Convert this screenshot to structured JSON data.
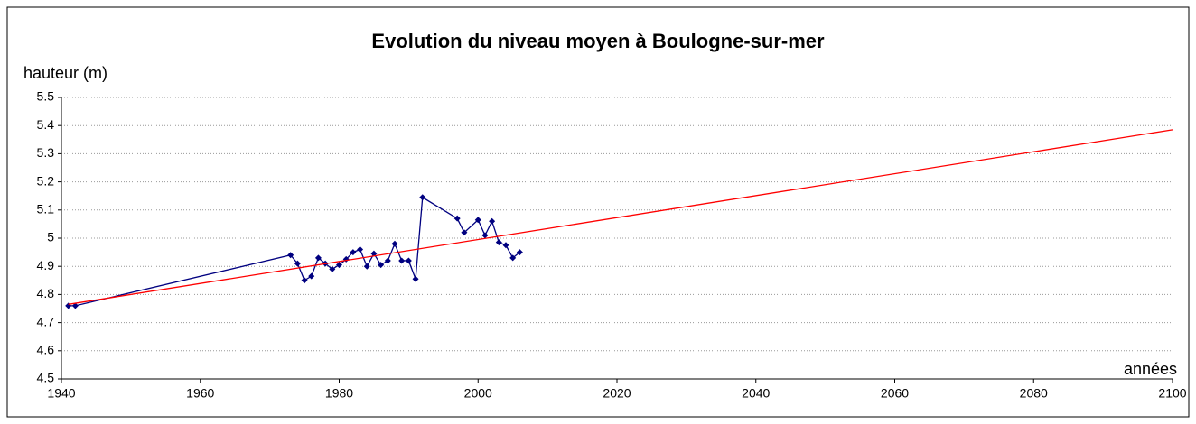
{
  "chart_data": {
    "type": "line",
    "title": "Evolution du niveau moyen à Boulogne-sur-mer",
    "y_label": "hauteur (m)",
    "x_label": "années",
    "xlim": [
      1940,
      2100
    ],
    "xticks": [
      1940,
      1960,
      1980,
      2000,
      2020,
      2040,
      2060,
      2080,
      2100
    ],
    "ylim": [
      4.5,
      5.5
    ],
    "yticks": [
      4.5,
      4.6,
      4.7,
      4.8,
      4.9,
      5,
      5.1,
      5.2,
      5.3,
      5.4,
      5.5
    ],
    "grid": true,
    "series": [
      {
        "color": "#000080",
        "markers": true,
        "x": [
          1941,
          1942,
          1973,
          1974,
          1975,
          1976,
          1977,
          1978,
          1979,
          1980,
          1981,
          1982,
          1983,
          1984,
          1985,
          1986,
          1987,
          1988,
          1989,
          1990,
          1991,
          1992,
          1997,
          1998,
          2000,
          2001,
          2002,
          2003,
          2004,
          2005,
          2006
        ],
        "values": [
          4.76,
          4.76,
          4.94,
          4.91,
          4.85,
          4.865,
          4.93,
          4.91,
          4.89,
          4.905,
          4.925,
          4.95,
          4.96,
          4.9,
          4.945,
          4.905,
          4.92,
          4.98,
          4.92,
          4.92,
          4.855,
          5.145,
          5.07,
          5.02,
          5.065,
          5.01,
          5.06,
          4.985,
          4.975,
          4.93,
          4.95
        ]
      },
      {
        "color": "#ff0000",
        "markers": false,
        "x": [
          1941,
          2100
        ],
        "values": [
          4.765,
          5.385
        ]
      }
    ]
  }
}
